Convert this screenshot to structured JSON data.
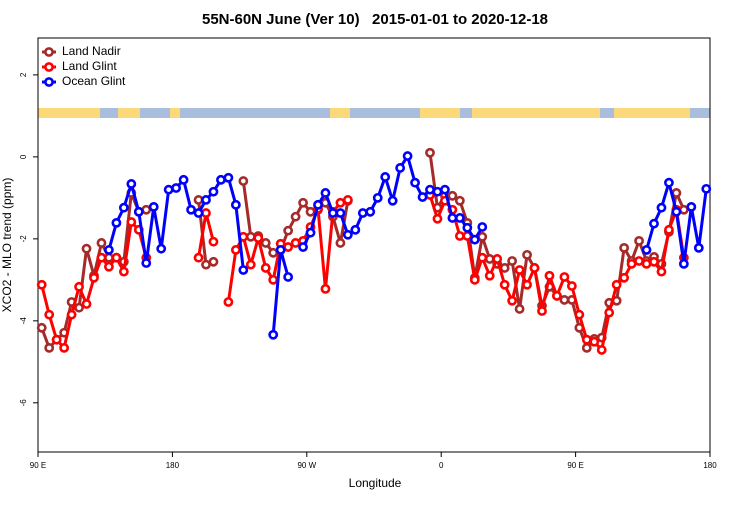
{
  "chart_data": {
    "type": "line",
    "title": "55N-60N June (Ver 10)   2015-01-01 to 2020-12-18",
    "x_label": "Longitude",
    "y_label": "XCO2 - MLO trend (ppm)",
    "legend": "upper left",
    "xlim": [
      90,
      540
    ],
    "ylim": [
      -7.2,
      2.9
    ],
    "xticks": [
      {
        "value": 90,
        "label": "90 E"
      },
      180,
      {
        "value": 270,
        "label": "90 W"
      },
      {
        "value": 360,
        "label": "0"
      },
      {
        "value": 450,
        "label": "90 E"
      },
      {
        "value": 540,
        "label": "180"
      }
    ],
    "yticks": [
      -6,
      -4,
      -2,
      0,
      2
    ],
    "x": [
      92.5,
      97.5,
      102.5,
      107.5,
      112.5,
      117.5,
      122.5,
      127.5,
      132.5,
      137.5,
      142.5,
      147.5,
      152.5,
      157.5,
      162.5,
      167.5,
      172.5,
      177.5,
      182.5,
      187.5,
      192.5,
      197.5,
      202.5,
      207.5,
      212.5,
      217.5,
      222.5,
      227.5,
      232.5,
      237.5,
      242.5,
      247.5,
      252.5,
      257.5,
      262.5,
      267.5,
      272.5,
      277.5,
      282.5,
      287.5,
      292.5,
      297.5,
      302.5,
      307.5,
      312.5,
      317.5,
      322.5,
      327.5,
      332.5,
      337.5,
      342.5,
      347.5,
      352.5,
      357.5,
      362.5,
      367.5,
      372.5,
      377.5,
      382.5,
      387.5,
      392.5,
      397.5,
      402.5,
      407.5,
      412.5,
      417.5,
      422.5,
      427.5,
      432.5,
      437.5,
      442.5,
      447.5,
      452.5,
      457.5,
      462.5,
      467.5,
      472.5,
      477.5,
      482.5,
      487.5,
      492.5,
      497.5,
      502.5,
      507.5,
      512.5,
      517.5,
      522.5,
      527.5,
      532.5,
      537.5
    ],
    "series": [
      {
        "name": "Land Nadir",
        "color": "#a52a2a",
        "values": [
          -4.17,
          -4.66,
          -4.46,
          -4.29,
          -3.54,
          -3.68,
          -2.24,
          -2.9,
          -2.1,
          -2.46,
          -2.46,
          -2.56,
          -0.88,
          -1.34,
          -1.29,
          null,
          null,
          null,
          null,
          null,
          null,
          -1.05,
          -2.63,
          -2.56,
          null,
          null,
          null,
          -0.59,
          -1.95,
          -1.93,
          -2.1,
          -2.34,
          -2.27,
          -1.8,
          -1.46,
          -1.12,
          -1.34,
          -1.29,
          -1.12,
          -1.46,
          -2.1,
          -1.07,
          null,
          null,
          null,
          null,
          null,
          null,
          null,
          null,
          null,
          null,
          0.1,
          -1.24,
          -0.95,
          -0.95,
          -1.07,
          -1.61,
          -2.95,
          -1.95,
          -2.49,
          -2.61,
          -2.71,
          -2.54,
          -3.71,
          -2.39,
          -2.71,
          -3.63,
          -3.17,
          -3.39,
          -3.49,
          -3.49,
          -4.17,
          -4.66,
          -4.44,
          -4.41,
          -3.56,
          -3.51,
          -2.22,
          -2.54,
          -2.05,
          -2.54,
          -2.44,
          -2.61,
          -1.83,
          -0.88,
          -1.29,
          null,
          null,
          null
        ]
      },
      {
        "name": "Land Glint",
        "color": "#ff0000",
        "values": [
          -3.12,
          -3.85,
          -4.46,
          -4.66,
          -3.85,
          -3.17,
          -3.59,
          -2.95,
          -2.46,
          -2.68,
          -2.46,
          -2.8,
          -1.59,
          -1.78,
          -2.46,
          null,
          null,
          null,
          null,
          null,
          null,
          -2.46,
          -1.37,
          -2.07,
          null,
          -3.54,
          -2.27,
          -1.95,
          -2.63,
          -1.98,
          -2.71,
          -3.0,
          -2.12,
          -2.2,
          -2.1,
          -2.05,
          -1.71,
          -1.27,
          -3.22,
          -1.34,
          -1.12,
          -1.05,
          null,
          null,
          null,
          null,
          null,
          null,
          null,
          null,
          null,
          null,
          -0.93,
          -1.51,
          -1.07,
          -1.29,
          -1.93,
          -1.93,
          -3.0,
          -2.46,
          -2.9,
          -2.49,
          -3.12,
          -3.51,
          -2.76,
          -3.12,
          -2.71,
          -3.76,
          -2.9,
          -3.39,
          -2.93,
          -3.15,
          -3.85,
          -4.46,
          -4.51,
          -4.71,
          -3.8,
          -3.12,
          -2.95,
          -2.61,
          -2.54,
          -2.61,
          -2.56,
          -2.8,
          -1.78,
          -1.29,
          -2.46,
          null,
          null,
          null
        ]
      },
      {
        "name": "Ocean Glint",
        "color": "#0000ff",
        "values": [
          null,
          null,
          null,
          null,
          null,
          null,
          null,
          null,
          null,
          -2.27,
          -1.61,
          -1.24,
          -0.66,
          -1.34,
          -2.59,
          -1.22,
          -2.24,
          -0.8,
          -0.76,
          -0.56,
          -1.29,
          -1.37,
          -1.05,
          -0.85,
          -0.56,
          -0.51,
          -1.17,
          -2.76,
          null,
          null,
          null,
          -4.34,
          -2.27,
          -2.93,
          null,
          -2.2,
          -1.85,
          -1.17,
          -0.88,
          -1.37,
          -1.37,
          -1.9,
          -1.78,
          -1.37,
          -1.34,
          -1.0,
          -0.49,
          -1.07,
          -0.27,
          0.02,
          -0.63,
          -0.98,
          -0.8,
          -0.85,
          -0.8,
          -1.49,
          -1.49,
          -1.73,
          -2.02,
          -1.71,
          null,
          null,
          null,
          null,
          null,
          null,
          null,
          null,
          null,
          null,
          null,
          null,
          null,
          null,
          null,
          null,
          null,
          null,
          null,
          null,
          null,
          -2.27,
          -1.63,
          -1.24,
          -0.63,
          -1.34,
          -2.61,
          -1.22,
          -2.22,
          -0.78
        ]
      }
    ]
  }
}
